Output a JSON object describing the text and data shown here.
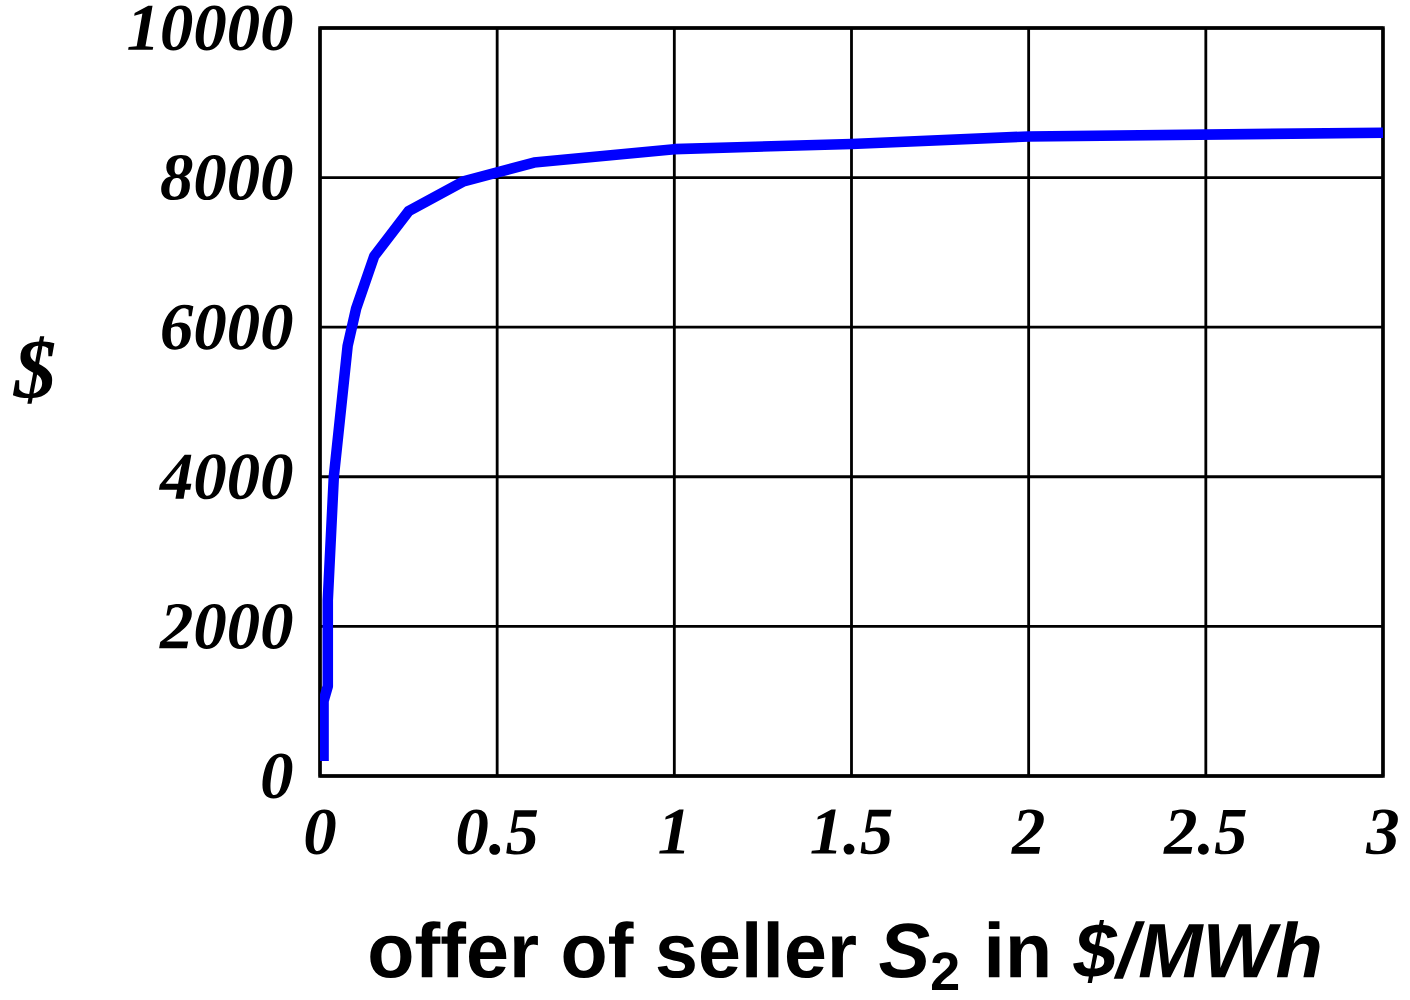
{
  "chart_data": {
    "type": "line",
    "xlabel": "offer of seller *S*$_{2}$ in *$/MWh*",
    "ylabel": "$",
    "x": [
      0.01,
      0.01,
      0.022,
      0.022,
      0.039,
      0.078,
      0.102,
      0.153,
      0.25,
      0.405,
      0.604,
      1.0,
      1.5,
      2.0,
      3.0
    ],
    "series": [
      {
        "color": "#0000ff",
        "values": [
          200,
          1000,
          1200,
          2350,
          4000,
          5750,
          6250,
          6950,
          7550,
          7950,
          8200,
          8380,
          8450,
          8550,
          8600
        ]
      }
    ],
    "xlim": [
      0,
      3
    ],
    "ylim": [
      0,
      10000
    ],
    "xticks": [
      0,
      0.5,
      1,
      1.5,
      2,
      2.5,
      3
    ],
    "yticks": [
      0,
      2000,
      4000,
      6000,
      8000,
      10000
    ],
    "grid": true,
    "marker": "none",
    "line_style": "solid"
  }
}
